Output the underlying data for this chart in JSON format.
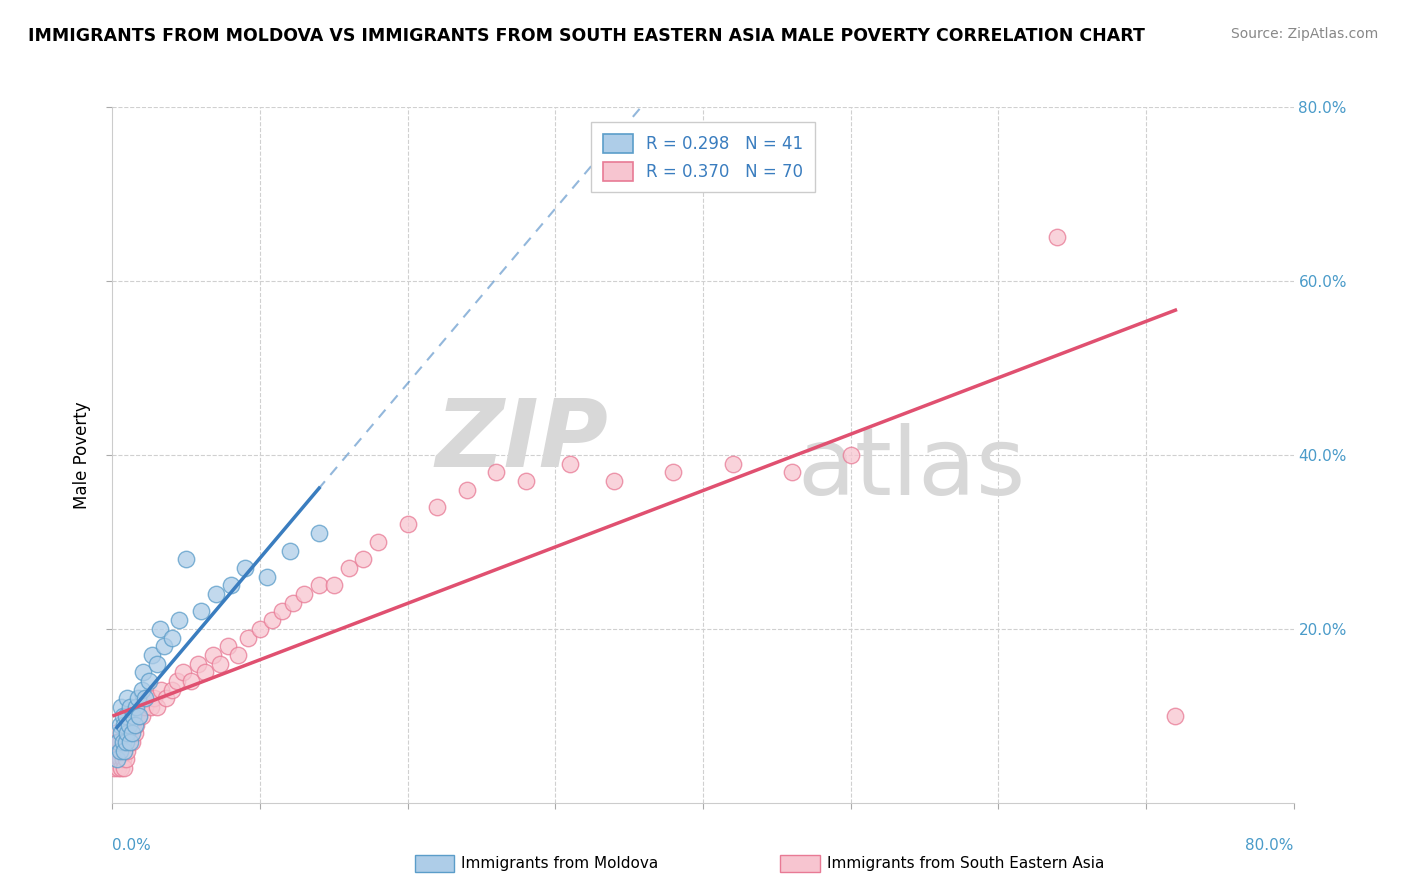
{
  "title": "IMMIGRANTS FROM MOLDOVA VS IMMIGRANTS FROM SOUTH EASTERN ASIA MALE POVERTY CORRELATION CHART",
  "source": "Source: ZipAtlas.com",
  "ylabel": "Male Poverty",
  "legend_moldova": "R = 0.298   N = 41",
  "legend_sea": "R = 0.370   N = 70",
  "moldova_fill": "#aecde8",
  "moldova_edge": "#5b9dc9",
  "sea_fill": "#f7c5d0",
  "sea_edge": "#e87a95",
  "moldova_line": "#3a7dbf",
  "sea_line": "#e05070",
  "xlim": [
    0,
    0.8
  ],
  "ylim": [
    0,
    0.8
  ],
  "moldova_x": [
    0.003,
    0.004,
    0.005,
    0.005,
    0.006,
    0.006,
    0.007,
    0.007,
    0.008,
    0.008,
    0.009,
    0.009,
    0.01,
    0.01,
    0.011,
    0.012,
    0.012,
    0.013,
    0.014,
    0.015,
    0.016,
    0.017,
    0.018,
    0.02,
    0.021,
    0.022,
    0.025,
    0.027,
    0.03,
    0.032,
    0.035,
    0.04,
    0.045,
    0.05,
    0.06,
    0.07,
    0.08,
    0.09,
    0.105,
    0.12,
    0.14
  ],
  "moldova_y": [
    0.05,
    0.07,
    0.09,
    0.06,
    0.08,
    0.11,
    0.07,
    0.1,
    0.06,
    0.09,
    0.07,
    0.1,
    0.08,
    0.12,
    0.09,
    0.07,
    0.11,
    0.08,
    0.1,
    0.09,
    0.11,
    0.12,
    0.1,
    0.13,
    0.15,
    0.12,
    0.14,
    0.17,
    0.16,
    0.2,
    0.18,
    0.19,
    0.21,
    0.28,
    0.22,
    0.24,
    0.25,
    0.27,
    0.26,
    0.29,
    0.31
  ],
  "sea_x": [
    0.001,
    0.002,
    0.002,
    0.003,
    0.003,
    0.004,
    0.004,
    0.005,
    0.005,
    0.006,
    0.006,
    0.007,
    0.007,
    0.008,
    0.008,
    0.009,
    0.009,
    0.01,
    0.01,
    0.011,
    0.012,
    0.013,
    0.014,
    0.015,
    0.016,
    0.017,
    0.018,
    0.019,
    0.02,
    0.022,
    0.024,
    0.026,
    0.028,
    0.03,
    0.033,
    0.036,
    0.04,
    0.044,
    0.048,
    0.053,
    0.058,
    0.063,
    0.068,
    0.073,
    0.078,
    0.085,
    0.092,
    0.1,
    0.108,
    0.115,
    0.122,
    0.13,
    0.14,
    0.15,
    0.16,
    0.17,
    0.18,
    0.2,
    0.22,
    0.24,
    0.26,
    0.28,
    0.31,
    0.34,
    0.38,
    0.42,
    0.46,
    0.5,
    0.64,
    0.72
  ],
  "sea_y": [
    0.04,
    0.06,
    0.08,
    0.05,
    0.07,
    0.04,
    0.06,
    0.05,
    0.07,
    0.04,
    0.06,
    0.05,
    0.07,
    0.04,
    0.06,
    0.05,
    0.08,
    0.06,
    0.09,
    0.07,
    0.08,
    0.07,
    0.09,
    0.08,
    0.09,
    0.1,
    0.1,
    0.11,
    0.1,
    0.11,
    0.12,
    0.11,
    0.12,
    0.11,
    0.13,
    0.12,
    0.13,
    0.14,
    0.15,
    0.14,
    0.16,
    0.15,
    0.17,
    0.16,
    0.18,
    0.17,
    0.19,
    0.2,
    0.21,
    0.22,
    0.23,
    0.24,
    0.25,
    0.25,
    0.27,
    0.28,
    0.3,
    0.32,
    0.34,
    0.36,
    0.38,
    0.37,
    0.39,
    0.37,
    0.38,
    0.39,
    0.38,
    0.4,
    0.65,
    0.1
  ],
  "watermark_zip": "ZIP",
  "watermark_atlas": "atlas",
  "fig_width": 14.06,
  "fig_height": 8.92,
  "dpi": 100
}
